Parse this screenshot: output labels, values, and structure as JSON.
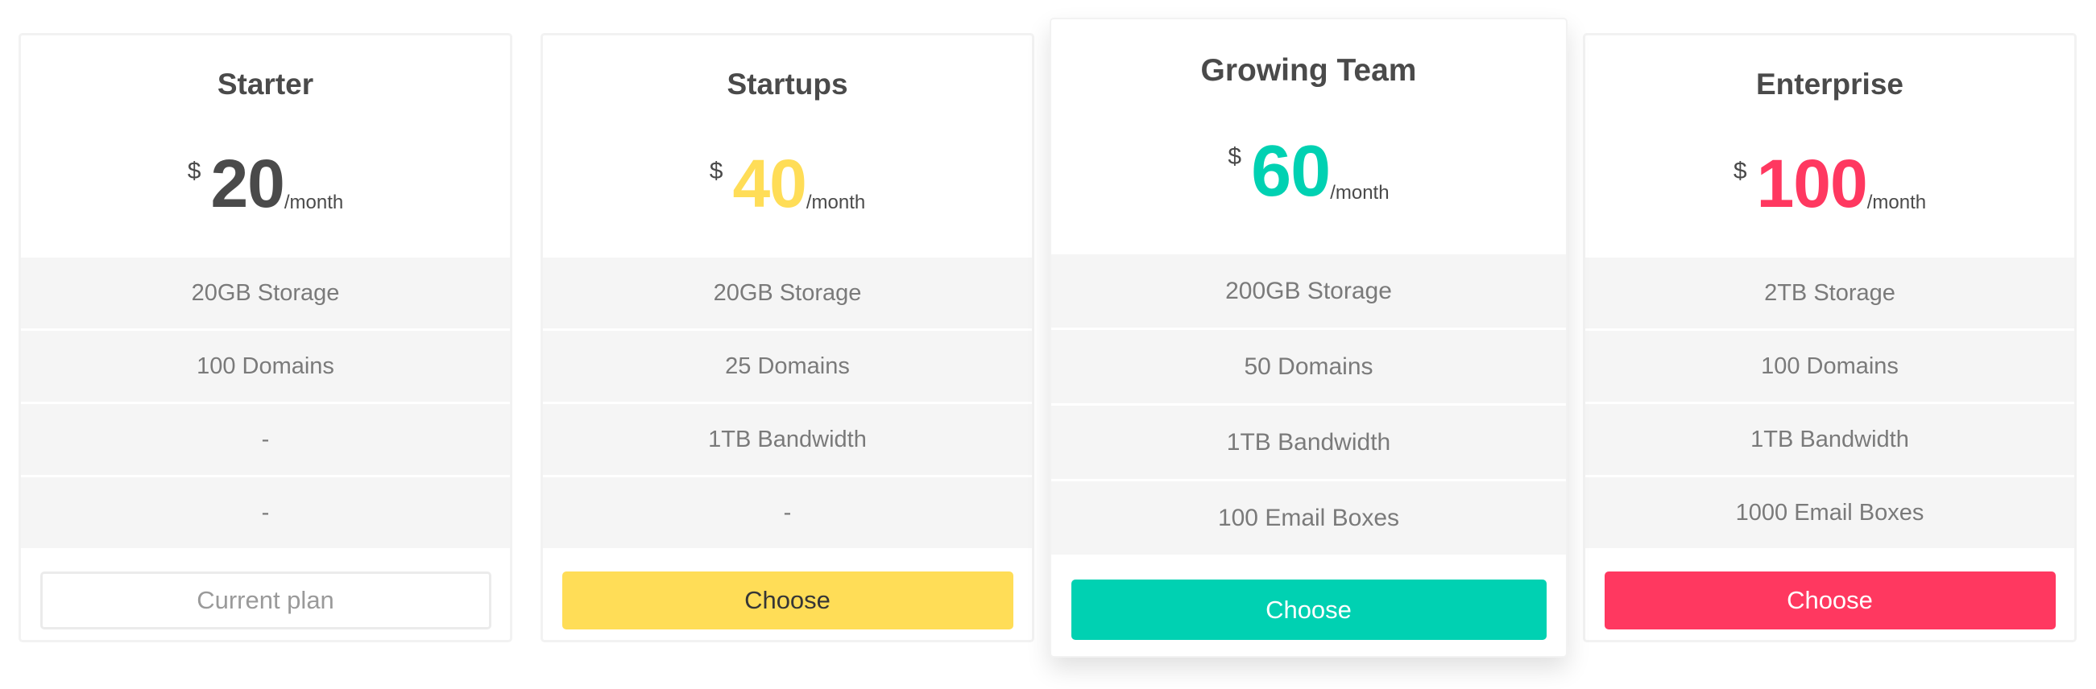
{
  "colors": {
    "dark_text": "#4a4a4a",
    "feature_text": "#7a7a7a",
    "yellow": "#ffdd57",
    "teal": "#00d1b2",
    "red": "#ff3860"
  },
  "plans": [
    {
      "title": "Starter",
      "currency": "$",
      "amount": "20",
      "period": "/month",
      "amount_color": "#4a4a4a",
      "features": [
        "20GB Storage",
        "100 Domains",
        "-",
        "-"
      ],
      "button": "Current plan"
    },
    {
      "title": "Startups",
      "currency": "$",
      "amount": "40",
      "period": "/month",
      "amount_color": "#ffdd57",
      "features": [
        "20GB Storage",
        "25 Domains",
        "1TB Bandwidth",
        "-"
      ],
      "button": "Choose"
    },
    {
      "title": "Growing Team",
      "currency": "$",
      "amount": "60",
      "period": "/month",
      "amount_color": "#00d1b2",
      "features": [
        "200GB Storage",
        "50 Domains",
        "1TB Bandwidth",
        "100 Email Boxes"
      ],
      "button": "Choose"
    },
    {
      "title": "Enterprise",
      "currency": "$",
      "amount": "100",
      "period": "/month",
      "amount_color": "#ff3860",
      "features": [
        "2TB Storage",
        "100 Domains",
        "1TB Bandwidth",
        "1000 Email Boxes"
      ],
      "button": "Choose"
    }
  ]
}
